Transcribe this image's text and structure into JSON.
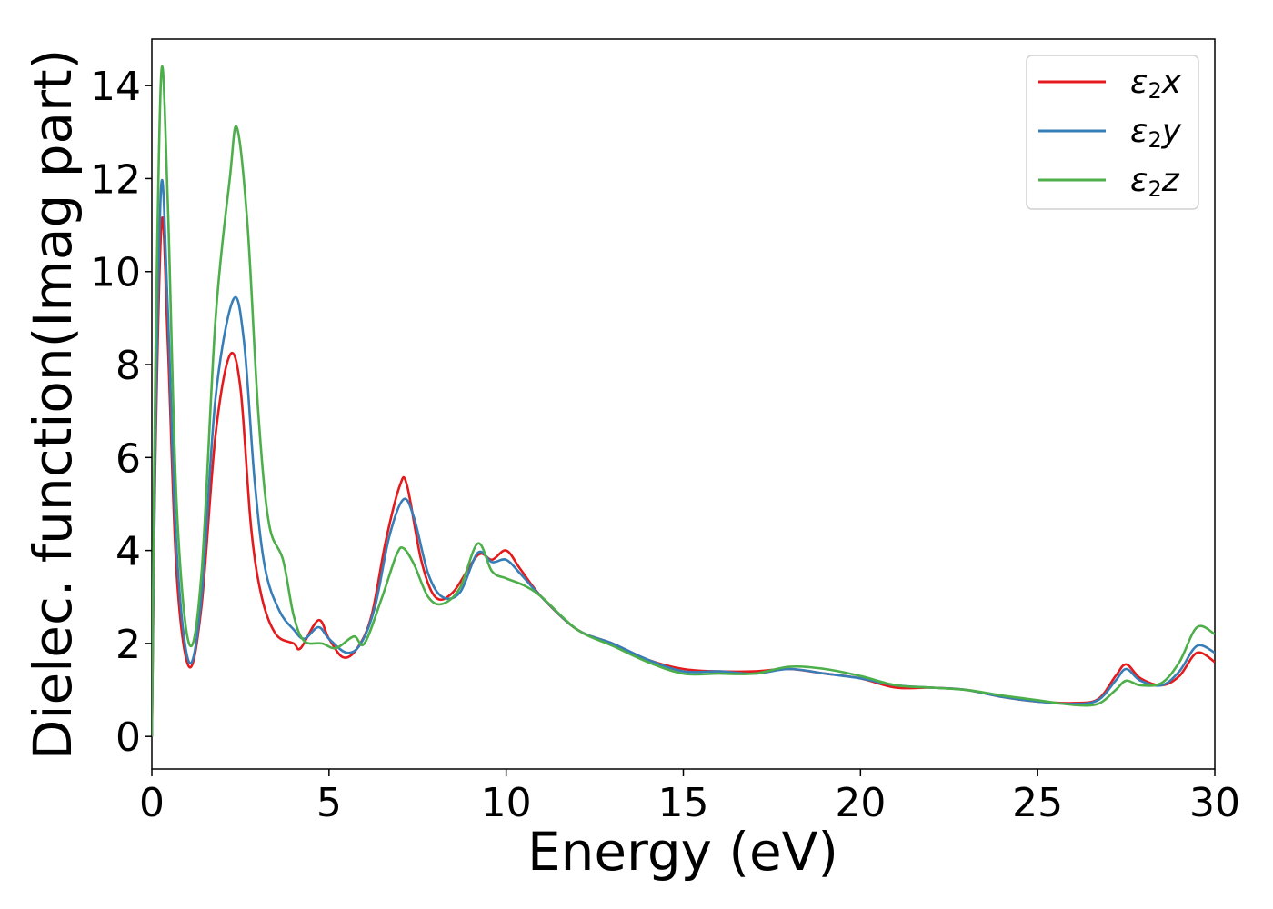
{
  "chart_data": {
    "type": "line",
    "xlabel": "Energy (eV)",
    "ylabel": "Dielec. function(Imag part)",
    "xlim": [
      0,
      30
    ],
    "ylim": [
      -0.7,
      15
    ],
    "xticks": [
      0,
      5,
      10,
      15,
      20,
      25,
      30
    ],
    "yticks": [
      0,
      2,
      4,
      6,
      8,
      10,
      12,
      14
    ],
    "legend_position": "top-right",
    "series": [
      {
        "name": "ε2x",
        "label_base": "ε",
        "label_sub": "2",
        "label_end": "x",
        "color": "#e41a1c",
        "points": [
          [
            0,
            0
          ],
          [
            0.1,
            6
          ],
          [
            0.28,
            11.1
          ],
          [
            0.45,
            8.5
          ],
          [
            0.7,
            3.5
          ],
          [
            1.05,
            1.5
          ],
          [
            1.4,
            2.8
          ],
          [
            1.8,
            6.5
          ],
          [
            2.2,
            8.2
          ],
          [
            2.5,
            7.5
          ],
          [
            2.8,
            4.5
          ],
          [
            3.1,
            3.0
          ],
          [
            3.5,
            2.2
          ],
          [
            4.0,
            2.0
          ],
          [
            4.2,
            1.9
          ],
          [
            4.7,
            2.5
          ],
          [
            5.0,
            2.1
          ],
          [
            5.4,
            1.7
          ],
          [
            5.8,
            1.9
          ],
          [
            6.2,
            2.6
          ],
          [
            6.6,
            4.2
          ],
          [
            7.0,
            5.4
          ],
          [
            7.2,
            5.4
          ],
          [
            7.6,
            3.8
          ],
          [
            8.0,
            3.0
          ],
          [
            8.5,
            3.1
          ],
          [
            9.2,
            3.9
          ],
          [
            9.6,
            3.8
          ],
          [
            10.0,
            4.0
          ],
          [
            10.4,
            3.6
          ],
          [
            11.0,
            3.0
          ],
          [
            12.0,
            2.3
          ],
          [
            13.0,
            2.0
          ],
          [
            14.0,
            1.65
          ],
          [
            15.0,
            1.45
          ],
          [
            16.0,
            1.4
          ],
          [
            17.0,
            1.4
          ],
          [
            18.0,
            1.45
          ],
          [
            19.0,
            1.35
          ],
          [
            20.0,
            1.25
          ],
          [
            21.0,
            1.05
          ],
          [
            22.0,
            1.05
          ],
          [
            23.0,
            1.0
          ],
          [
            24.0,
            0.85
          ],
          [
            25.0,
            0.75
          ],
          [
            26.0,
            0.72
          ],
          [
            26.7,
            0.8
          ],
          [
            27.2,
            1.3
          ],
          [
            27.5,
            1.55
          ],
          [
            27.9,
            1.25
          ],
          [
            28.5,
            1.1
          ],
          [
            29.0,
            1.3
          ],
          [
            29.5,
            1.8
          ],
          [
            30.0,
            1.6
          ]
        ]
      },
      {
        "name": "ε2y",
        "label_base": "ε",
        "label_sub": "2",
        "label_end": "y",
        "color": "#377eb8",
        "points": [
          [
            0,
            0
          ],
          [
            0.1,
            6.5
          ],
          [
            0.27,
            11.9
          ],
          [
            0.45,
            9.2
          ],
          [
            0.7,
            4.0
          ],
          [
            1.05,
            1.6
          ],
          [
            1.4,
            3.0
          ],
          [
            1.8,
            7.3
          ],
          [
            2.3,
            9.4
          ],
          [
            2.6,
            8.5
          ],
          [
            2.9,
            5.5
          ],
          [
            3.2,
            3.6
          ],
          [
            3.6,
            2.7
          ],
          [
            4.0,
            2.3
          ],
          [
            4.3,
            2.1
          ],
          [
            4.7,
            2.35
          ],
          [
            5.0,
            2.1
          ],
          [
            5.5,
            1.8
          ],
          [
            5.9,
            2.0
          ],
          [
            6.3,
            2.8
          ],
          [
            6.7,
            4.3
          ],
          [
            7.1,
            5.1
          ],
          [
            7.4,
            4.7
          ],
          [
            7.8,
            3.5
          ],
          [
            8.2,
            3.0
          ],
          [
            8.7,
            3.1
          ],
          [
            9.2,
            3.95
          ],
          [
            9.6,
            3.75
          ],
          [
            10.0,
            3.8
          ],
          [
            10.4,
            3.5
          ],
          [
            11.0,
            3.0
          ],
          [
            12.0,
            2.3
          ],
          [
            13.0,
            2.0
          ],
          [
            14.0,
            1.65
          ],
          [
            15.0,
            1.4
          ],
          [
            16.0,
            1.4
          ],
          [
            17.0,
            1.35
          ],
          [
            18.0,
            1.45
          ],
          [
            19.0,
            1.35
          ],
          [
            20.0,
            1.25
          ],
          [
            21.0,
            1.1
          ],
          [
            22.0,
            1.05
          ],
          [
            23.0,
            1.0
          ],
          [
            24.0,
            0.85
          ],
          [
            25.0,
            0.75
          ],
          [
            26.0,
            0.7
          ],
          [
            26.7,
            0.78
          ],
          [
            27.2,
            1.2
          ],
          [
            27.5,
            1.45
          ],
          [
            27.9,
            1.2
          ],
          [
            28.5,
            1.1
          ],
          [
            29.0,
            1.4
          ],
          [
            29.5,
            1.95
          ],
          [
            30.0,
            1.8
          ]
        ]
      },
      {
        "name": "ε2z",
        "label_base": "ε",
        "label_sub": "2",
        "label_end": "z",
        "color": "#4daf4a",
        "points": [
          [
            0,
            0
          ],
          [
            0.1,
            8
          ],
          [
            0.27,
            14.3
          ],
          [
            0.45,
            11.5
          ],
          [
            0.7,
            5.0
          ],
          [
            1.05,
            2.0
          ],
          [
            1.4,
            3.5
          ],
          [
            1.8,
            9.0
          ],
          [
            2.2,
            12.0
          ],
          [
            2.4,
            13.1
          ],
          [
            2.7,
            11.0
          ],
          [
            3.0,
            7.0
          ],
          [
            3.3,
            4.6
          ],
          [
            3.7,
            3.8
          ],
          [
            4.0,
            2.6
          ],
          [
            4.3,
            2.05
          ],
          [
            4.8,
            2.0
          ],
          [
            5.2,
            1.9
          ],
          [
            5.7,
            2.15
          ],
          [
            6.0,
            2.0
          ],
          [
            6.5,
            3.0
          ],
          [
            6.9,
            3.9
          ],
          [
            7.1,
            4.05
          ],
          [
            7.4,
            3.7
          ],
          [
            7.8,
            3.0
          ],
          [
            8.2,
            2.85
          ],
          [
            8.7,
            3.2
          ],
          [
            9.2,
            4.15
          ],
          [
            9.6,
            3.55
          ],
          [
            10.0,
            3.4
          ],
          [
            10.5,
            3.25
          ],
          [
            11.0,
            3.0
          ],
          [
            12.0,
            2.3
          ],
          [
            13.0,
            1.95
          ],
          [
            14.0,
            1.6
          ],
          [
            15.0,
            1.35
          ],
          [
            16.0,
            1.35
          ],
          [
            17.0,
            1.35
          ],
          [
            18.0,
            1.5
          ],
          [
            19.0,
            1.45
          ],
          [
            20.0,
            1.3
          ],
          [
            21.0,
            1.1
          ],
          [
            22.0,
            1.05
          ],
          [
            23.0,
            1.0
          ],
          [
            24.0,
            0.88
          ],
          [
            25.0,
            0.78
          ],
          [
            26.0,
            0.68
          ],
          [
            26.7,
            0.7
          ],
          [
            27.2,
            1.0
          ],
          [
            27.5,
            1.2
          ],
          [
            27.9,
            1.1
          ],
          [
            28.5,
            1.15
          ],
          [
            29.0,
            1.6
          ],
          [
            29.5,
            2.35
          ],
          [
            30.0,
            2.2
          ]
        ]
      }
    ]
  }
}
